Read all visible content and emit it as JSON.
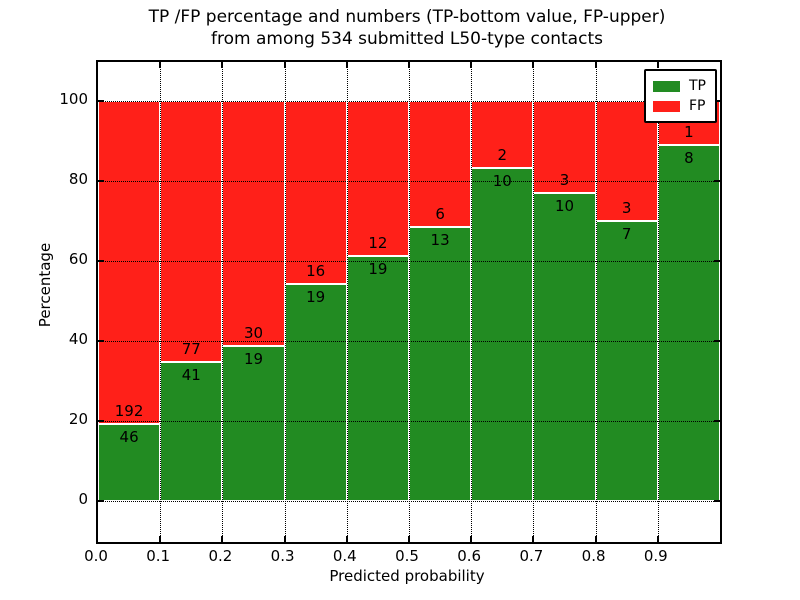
{
  "chart_data": {
    "type": "bar",
    "stacked": true,
    "normalized": "each bin stacked to 100%",
    "title_line1": "TP /FP percentage and numbers (TP-bottom value, FP-upper)",
    "title_line2": "from among 534 submitted L50-type contacts",
    "total_submitted_contacts": 534,
    "xlabel": "Predicted probability",
    "ylabel": "Percentage",
    "x_bin_width": 0.1,
    "x_bin_starts": [
      0.0,
      0.1,
      0.2,
      0.3,
      0.4,
      0.5,
      0.6,
      0.7,
      0.8,
      0.9
    ],
    "series": [
      {
        "name": "TP",
        "color": "#228b22",
        "values": [
          46,
          41,
          19,
          19,
          19,
          13,
          10,
          10,
          7,
          8
        ]
      },
      {
        "name": "FP",
        "color": "#ff2019",
        "values": [
          192,
          77,
          30,
          16,
          12,
          6,
          2,
          3,
          3,
          1
        ]
      }
    ],
    "tp_percent_of_bin": [
      19.3,
      34.7,
      38.8,
      54.3,
      61.3,
      68.4,
      83.3,
      76.9,
      70.0,
      88.9
    ],
    "y_ticks": [
      0,
      20,
      40,
      60,
      80,
      100
    ],
    "x_tick_labels": [
      "0.0",
      "0.1",
      "0.2",
      "0.3",
      "0.4",
      "0.5",
      "0.6",
      "0.7",
      "0.8",
      "0.9"
    ],
    "ylim": [
      -10,
      110
    ],
    "xlim": [
      0.0,
      1.0
    ],
    "grid": "dotted black on",
    "bar_edge_color": "#ffffff",
    "value_label_rule": "FP count above TP/FP boundary, TP count below",
    "legend": {
      "position": "upper right",
      "entries": [
        "TP",
        "FP"
      ]
    }
  }
}
